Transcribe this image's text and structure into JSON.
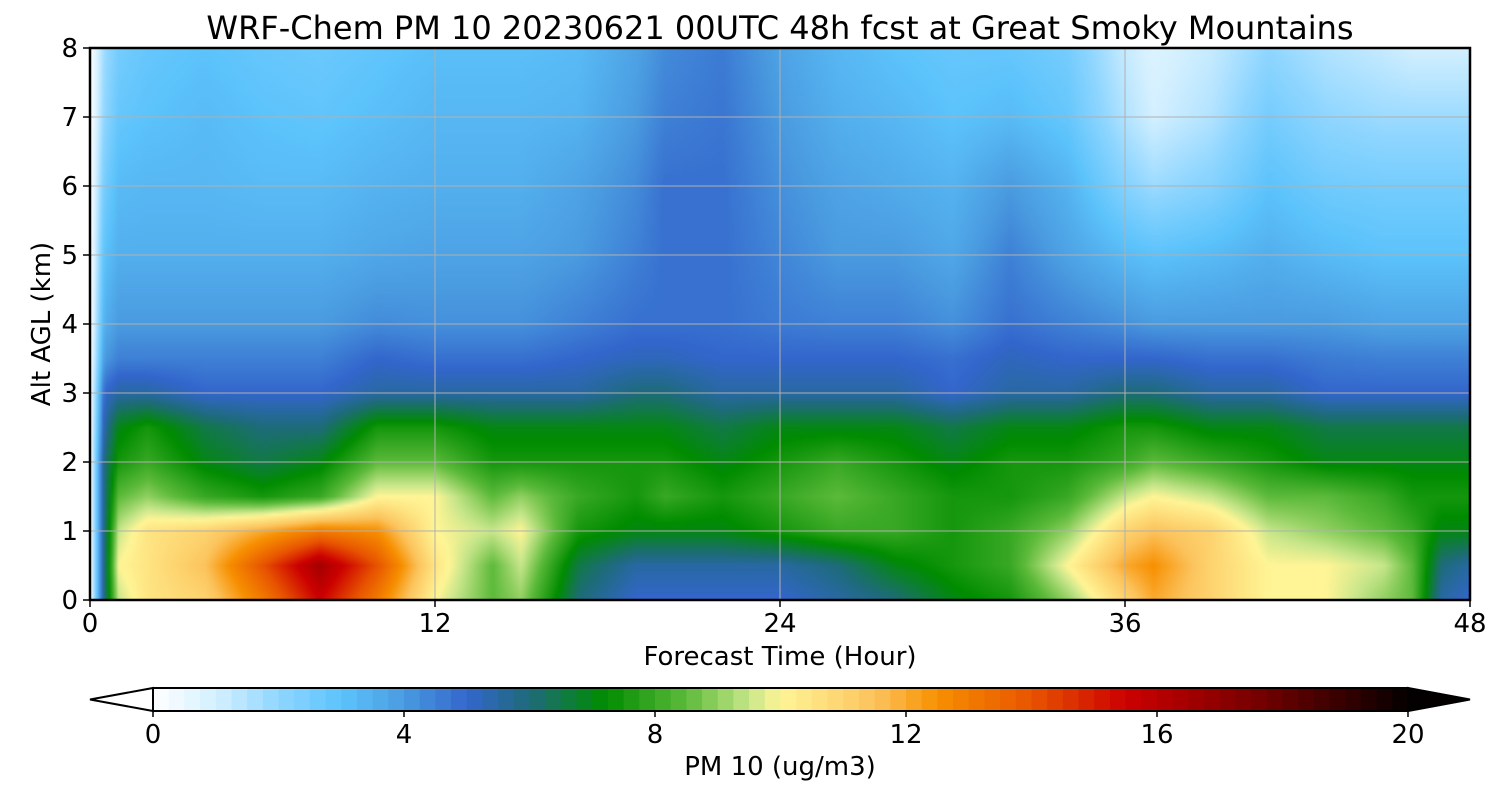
{
  "chart_data": {
    "type": "heatmap",
    "title": "WRF-Chem PM 10  20230621 00UTC 48h fcst at Great Smoky Mountains",
    "xlabel": "Forecast Time (Hour)",
    "ylabel": "Alt AGL (km)",
    "xlim": [
      0,
      48
    ],
    "ylim": [
      0,
      8
    ],
    "xticks": [
      0,
      12,
      24,
      36,
      48
    ],
    "yticks": [
      0,
      1,
      2,
      3,
      4,
      5,
      6,
      7,
      8
    ],
    "grid": true,
    "colorbar": {
      "label": "PM 10  (ug/m3)",
      "range": [
        0,
        20
      ],
      "ticks": [
        0,
        4,
        8,
        12,
        16,
        20
      ],
      "extend": "both",
      "stops": [
        {
          "v": 0,
          "c": "#ffffff"
        },
        {
          "v": 1,
          "c": "#d4f0ff"
        },
        {
          "v": 2,
          "c": "#8fd6ff"
        },
        {
          "v": 3,
          "c": "#5cc3fb"
        },
        {
          "v": 4,
          "c": "#4a9be0"
        },
        {
          "v": 5,
          "c": "#3366cc"
        },
        {
          "v": 6,
          "c": "#1e6b7a"
        },
        {
          "v": 7.2,
          "c": "#008c00"
        },
        {
          "v": 8.5,
          "c": "#5cba3a"
        },
        {
          "v": 9.5,
          "c": "#c7e68a"
        },
        {
          "v": 10,
          "c": "#fff596"
        },
        {
          "v": 11.5,
          "c": "#fcc35c"
        },
        {
          "v": 12.5,
          "c": "#f78f00"
        },
        {
          "v": 14,
          "c": "#e85400"
        },
        {
          "v": 15.5,
          "c": "#cc0000"
        },
        {
          "v": 17.5,
          "c": "#7a0000"
        },
        {
          "v": 20,
          "c": "#050000"
        }
      ]
    },
    "x": [
      0,
      0.5,
      1,
      2,
      4,
      6,
      8,
      10,
      12,
      14,
      15,
      17,
      19,
      20,
      22,
      24,
      26,
      28,
      30,
      32,
      34,
      36,
      37,
      39,
      41,
      43,
      45,
      46,
      47,
      48
    ],
    "y": [
      0,
      0.5,
      1,
      1.5,
      2,
      2.5,
      3,
      3.5,
      4,
      5,
      6,
      7,
      8
    ],
    "z": [
      [
        0,
        6,
        9.5,
        10.5,
        11,
        13,
        15.5,
        13,
        10,
        8.5,
        9,
        6,
        5,
        5,
        5,
        5,
        5.5,
        6,
        7,
        7.5,
        9,
        11,
        12,
        11,
        10,
        10,
        9,
        8.5,
        5.5,
        5
      ],
      [
        0,
        6,
        10,
        10.5,
        11.5,
        14,
        16.5,
        14,
        10.5,
        8.5,
        9.5,
        6.5,
        5.5,
        5.5,
        5.5,
        5.5,
        6,
        7,
        7.5,
        8,
        10,
        12,
        12.5,
        11,
        10,
        10,
        9.5,
        8.5,
        6,
        5.5
      ],
      [
        0,
        6,
        9.5,
        10.5,
        11,
        12,
        13,
        12.5,
        10,
        9.5,
        10,
        7.5,
        7,
        7,
        7,
        7.5,
        8,
        8,
        7.5,
        8,
        9,
        11,
        11.5,
        11,
        9.5,
        9,
        8.5,
        8,
        7,
        7
      ],
      [
        0,
        6,
        8.5,
        9,
        8,
        7.5,
        8,
        10,
        10,
        8.5,
        9,
        8,
        7.5,
        8,
        7.5,
        8,
        8.5,
        8,
        7.5,
        7.5,
        8,
        9.5,
        10,
        9.5,
        8.5,
        8.5,
        8,
        7.5,
        7.5,
        7.5
      ],
      [
        0,
        6,
        7.5,
        8,
        7,
        6.5,
        7,
        8.5,
        8.5,
        7.5,
        7.5,
        7.5,
        7.5,
        7.5,
        7,
        7.5,
        8,
        7.5,
        7,
        7.5,
        7.5,
        8,
        8.5,
        8,
        7.5,
        7,
        7,
        7,
        7,
        7
      ],
      [
        0,
        5.5,
        7,
        7.5,
        6.5,
        6,
        6,
        7.5,
        7.5,
        7,
        7,
        7,
        7,
        7,
        6.5,
        7,
        7,
        7,
        6.5,
        7,
        7,
        7.5,
        7.5,
        7,
        7,
        6.5,
        6.5,
        6.5,
        6.5,
        6.5
      ],
      [
        0,
        5,
        5.5,
        5.5,
        5,
        5,
        5,
        5.5,
        5.5,
        5.5,
        5.5,
        5.5,
        6,
        6,
        5.5,
        5.5,
        5.5,
        5.5,
        5,
        5.5,
        5.5,
        6,
        6,
        5.5,
        5.5,
        5,
        5,
        5,
        5,
        5
      ],
      [
        0,
        4,
        4.5,
        4.5,
        4.5,
        4.5,
        4.5,
        5,
        4.8,
        4.8,
        4.8,
        5,
        5.2,
        5.2,
        5,
        5,
        5,
        5,
        4.8,
        5.2,
        5,
        5,
        5,
        4.8,
        4.8,
        4.6,
        4.5,
        4.5,
        4.5,
        4.5
      ],
      [
        0,
        3.5,
        4,
        4,
        4,
        4,
        4,
        4.3,
        4.2,
        4.2,
        4.2,
        4.5,
        4.8,
        4.8,
        4.8,
        4.6,
        4.5,
        4.5,
        4.2,
        4.8,
        4.5,
        4.2,
        4,
        4,
        4,
        4,
        3.8,
        3.8,
        3.8,
        3.8
      ],
      [
        0,
        3,
        3.5,
        3.5,
        3.5,
        3.5,
        3.5,
        3.7,
        3.8,
        3.8,
        3.8,
        4,
        4.5,
        4.8,
        4.8,
        4.4,
        4,
        4,
        3.7,
        4.5,
        3.8,
        3.2,
        3,
        3.2,
        3.5,
        3.2,
        3,
        3,
        3,
        3
      ],
      [
        0,
        2.5,
        3.2,
        3.3,
        3.3,
        3.2,
        3.2,
        3.4,
        3.5,
        3.5,
        3.5,
        3.8,
        4.3,
        4.8,
        4.8,
        4.2,
        3.8,
        3.6,
        3.4,
        4,
        3.4,
        2.2,
        1.8,
        2.2,
        3,
        2.6,
        2.5,
        2.5,
        2.5,
        2.5
      ],
      [
        0,
        2,
        2.8,
        3,
        3.2,
        3,
        2.9,
        3.1,
        3.3,
        3.3,
        3.3,
        3.4,
        4,
        4.5,
        4.7,
        4,
        3.5,
        3.3,
        3,
        3.2,
        2.8,
        1.5,
        1,
        1.5,
        2.5,
        2,
        1.8,
        1.8,
        1.8,
        1.8
      ],
      [
        0,
        1.8,
        2.5,
        2.8,
        3,
        2.8,
        2.7,
        2.9,
        3.1,
        3.1,
        3.1,
        3.2,
        3.8,
        4.3,
        4.6,
        3.8,
        3.3,
        3,
        2.8,
        2.8,
        2.5,
        1.2,
        0.8,
        1.2,
        2,
        1.5,
        1.2,
        1,
        1,
        1
      ]
    ]
  }
}
